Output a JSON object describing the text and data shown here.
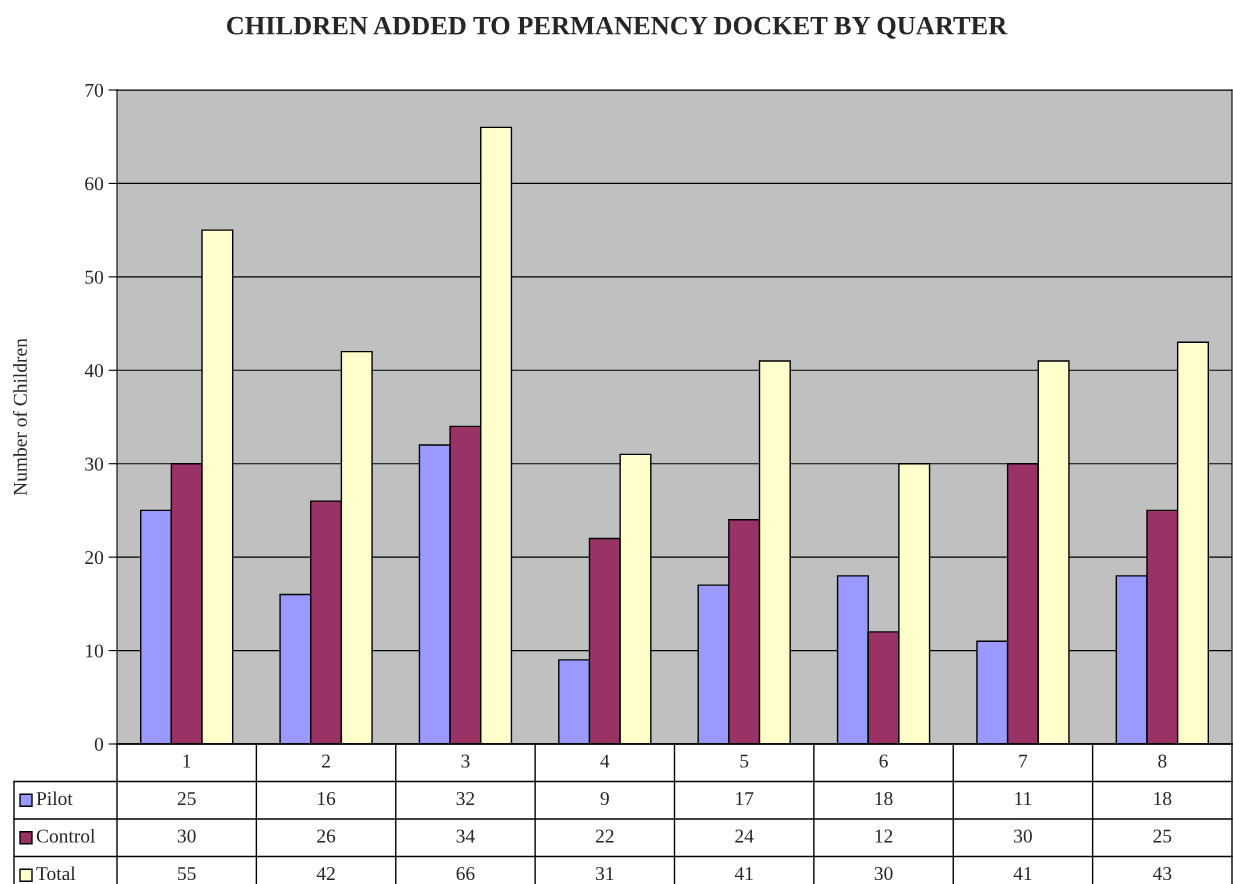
{
  "chart_data": {
    "type": "bar",
    "title": "CHILDREN ADDED TO PERMANENCY DOCKET BY QUARTER",
    "ylabel": "Number of Children",
    "categories": [
      "1",
      "2",
      "3",
      "4",
      "5",
      "6",
      "7",
      "8"
    ],
    "series": [
      {
        "name": "Pilot",
        "color": "#9999ff",
        "values": [
          25,
          16,
          32,
          9,
          17,
          18,
          11,
          18
        ]
      },
      {
        "name": "Control",
        "color": "#993366",
        "values": [
          30,
          26,
          34,
          22,
          24,
          12,
          30,
          25
        ]
      },
      {
        "name": "Total",
        "color": "#ffffcc",
        "values": [
          55,
          42,
          66,
          31,
          41,
          30,
          41,
          43
        ]
      }
    ],
    "ylim": [
      0,
      70
    ],
    "yticks": [
      0,
      10,
      20,
      30,
      40,
      50,
      60,
      70
    ],
    "grid": "y",
    "legend": "bottom",
    "data_labels": true
  }
}
